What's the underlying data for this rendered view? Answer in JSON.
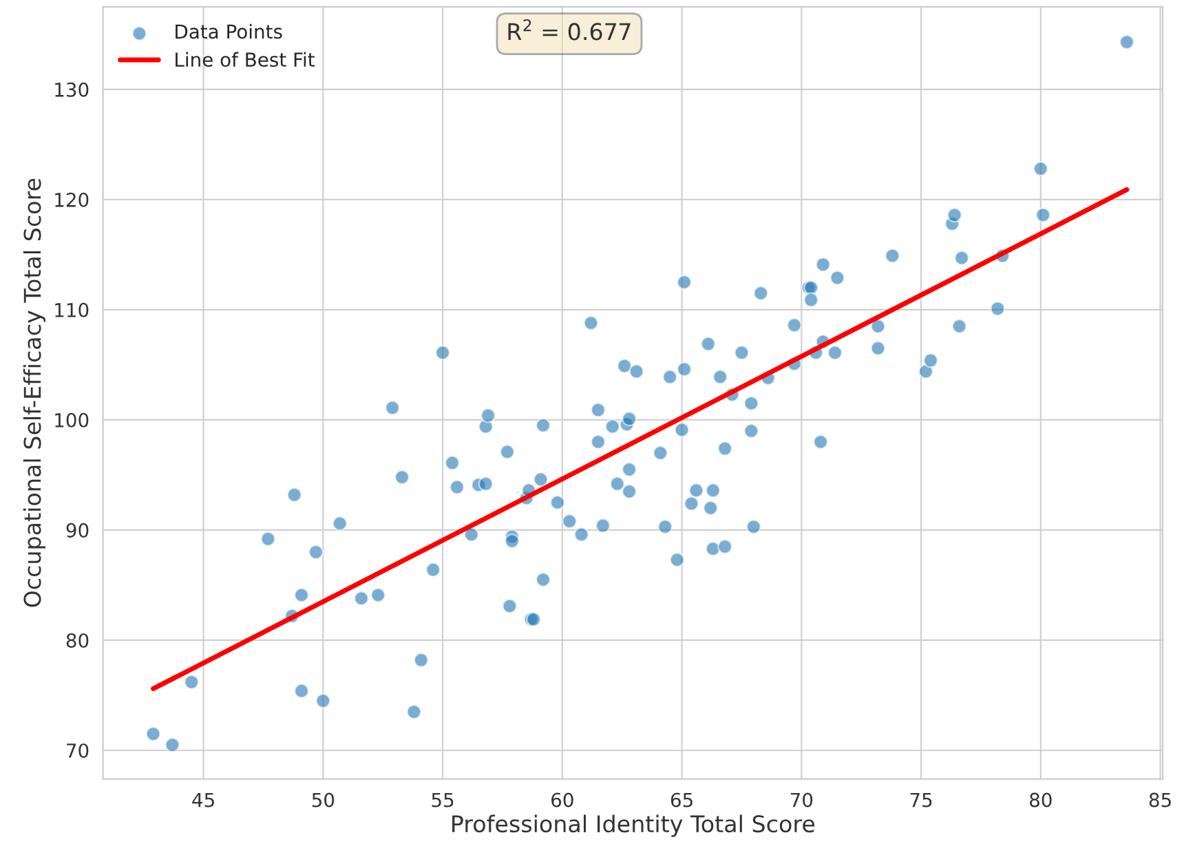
{
  "chart_data": {
    "type": "scatter",
    "xlabel": "Professional Identity Total Score",
    "ylabel": "Occupational Self-Efficacy Total Score",
    "annotations": [
      "R$^{2}$ = 0.677"
    ],
    "legend": "top left",
    "grid": true,
    "marker": "circle",
    "xlim": [
      40.8,
      85.1
    ],
    "xticks": [
      45,
      50,
      55,
      60,
      65,
      70,
      75,
      80,
      85
    ],
    "ylim": [
      67.4,
      137.5
    ],
    "yticks": [
      70,
      80,
      90,
      100,
      110,
      120,
      130
    ],
    "series": [
      {
        "name": "Data Points",
        "color": "#1f77b4",
        "x": [
          42.9,
          43.7,
          44.5,
          47.7,
          48.8,
          48.7,
          49.1,
          49.1,
          49.7,
          50.0,
          50.7,
          51.6,
          52.3,
          52.9,
          53.3,
          53.8,
          54.1,
          54.6,
          55.0,
          55.4,
          55.6,
          56.2,
          56.5,
          56.8,
          56.8,
          56.9,
          57.7,
          57.8,
          57.9,
          57.9,
          58.5,
          58.6,
          58.7,
          58.8,
          59.1,
          59.2,
          59.2,
          59.8,
          60.3,
          60.8,
          61.2,
          61.5,
          61.5,
          61.7,
          62.1,
          62.3,
          62.6,
          62.7,
          62.8,
          62.8,
          62.8,
          63.1,
          64.1,
          64.3,
          64.5,
          64.8,
          65.0,
          65.1,
          65.1,
          65.4,
          65.6,
          66.1,
          66.2,
          66.3,
          66.3,
          66.6,
          66.8,
          66.8,
          67.1,
          67.5,
          67.9,
          67.9,
          68.0,
          68.3,
          68.6,
          69.7,
          69.7,
          70.3,
          70.4,
          70.4,
          70.6,
          70.8,
          70.9,
          70.9,
          71.4,
          71.5,
          73.2,
          73.2,
          73.8,
          75.2,
          75.4,
          76.3,
          76.4,
          76.7,
          76.6,
          78.2,
          78.4,
          80.0,
          80.1,
          83.6
        ],
        "values": [
          71.5,
          70.5,
          76.2,
          89.2,
          93.2,
          82.2,
          84.1,
          75.4,
          88.0,
          74.5,
          90.6,
          83.8,
          84.1,
          101.1,
          94.8,
          73.5,
          78.2,
          86.4,
          106.1,
          96.1,
          93.9,
          89.6,
          94.1,
          94.2,
          99.4,
          100.4,
          97.1,
          83.1,
          89.4,
          89.0,
          92.9,
          93.6,
          81.9,
          81.9,
          94.6,
          99.5,
          85.5,
          92.5,
          90.8,
          89.6,
          108.8,
          100.9,
          98.0,
          90.4,
          99.4,
          94.2,
          104.9,
          99.6,
          100.1,
          95.5,
          93.5,
          104.4,
          97.0,
          90.3,
          103.9,
          87.3,
          99.1,
          104.6,
          112.5,
          92.4,
          93.6,
          106.9,
          92.0,
          88.3,
          93.6,
          103.9,
          88.5,
          97.4,
          102.3,
          106.1,
          101.5,
          99.0,
          90.3,
          111.5,
          103.8,
          108.6,
          105.1,
          112.0,
          112.0,
          110.9,
          106.1,
          98.0,
          107.1,
          114.1,
          106.1,
          112.9,
          106.5,
          108.5,
          114.9,
          104.4,
          105.4,
          117.8,
          118.6,
          114.7,
          108.5,
          110.1,
          114.9,
          122.8,
          118.6,
          134.3
        ]
      },
      {
        "name": "Line of Best Fit",
        "type": "line",
        "color": "#ff0000",
        "line_style": "solid",
        "marker": "none",
        "x": [
          42.9,
          83.6
        ],
        "values": [
          75.6,
          120.9
        ]
      }
    ]
  }
}
